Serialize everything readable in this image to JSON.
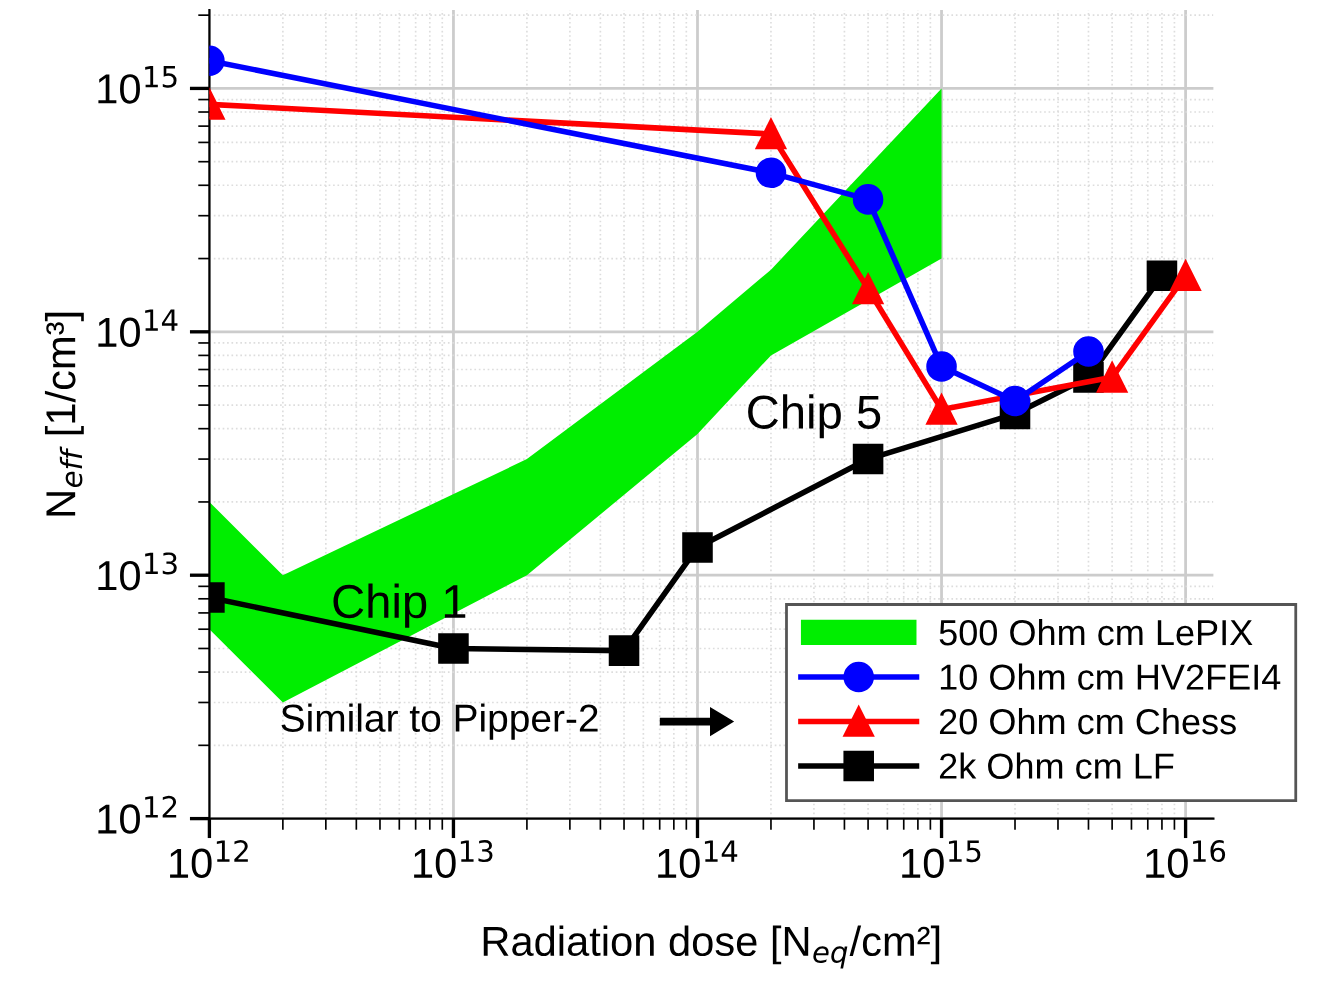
{
  "chart_data": {
    "type": "line",
    "xlabel": "Radiation dose [N$_{eq}$/cm²]",
    "ylabel": "N$_{eff}$ [1/cm³]",
    "log": "xy",
    "xlim": [
      1000000000000.0,
      1.3e+16
    ],
    "ylim": [
      1000000000000.0,
      2100000000000000.0
    ],
    "xticks": [
      {
        "value": 1000000000000.0,
        "label": "10$^{12}$"
      },
      {
        "value": 10000000000000.0,
        "label": "10$^{13}$"
      },
      {
        "value": 100000000000000.0,
        "label": "10$^{14}$"
      },
      {
        "value": 1000000000000000.0,
        "label": "10$^{15}$"
      },
      {
        "value": 1e+16,
        "label": "10$^{16}$"
      }
    ],
    "yticks": [
      {
        "value": 1000000000000.0,
        "label": "10$^{12}$"
      },
      {
        "value": 10000000000000.0,
        "label": "10$^{13}$"
      },
      {
        "value": 100000000000000.0,
        "label": "10$^{14}$"
      },
      {
        "value": 1000000000000000.0,
        "label": "10$^{15}$"
      }
    ],
    "grid": true,
    "legend": "bottom right",
    "series": [
      {
        "name": "500 Ohm cm LePIX",
        "color": "#00ee00",
        "marker": "none",
        "x": [
          1000000000000.0,
          2000000000000.0,
          20000000000000.0,
          100000000000000.0,
          200000000000000.0,
          1000000000000000.0
        ],
        "values": [
          null,
          null,
          null,
          null,
          null,
          null
        ],
        "lower": [
          6000000000000.0,
          3000000000000.0,
          10000000000000.0,
          38000000000000.0,
          80000000000000.0,
          200000000000000.0
        ],
        "upper": [
          20000000000000.0,
          10000000000000.0,
          30000000000000.0,
          100000000000000.0,
          180000000000000.0,
          1000000000000000.0
        ]
      },
      {
        "name": "10 Ohm cm HV2FEI4",
        "color": "#0000ff",
        "marker": "circle",
        "x": [
          1000000000000.0,
          200000000000000.0,
          500000000000000.0,
          1000000000000000.0,
          2000000000000000.0,
          4000000000000000.0
        ],
        "values": [
          1300000000000000.0,
          450000000000000.0,
          350000000000000.0,
          72000000000000.0,
          52000000000000.0,
          83000000000000.0
        ]
      },
      {
        "name": "20 Ohm cm Chess",
        "color": "#ff0000",
        "marker": "triangle",
        "x": [
          1000000000000.0,
          200000000000000.0,
          500000000000000.0,
          1000000000000000.0,
          5000000000000000.0,
          1e+16
        ],
        "values": [
          860000000000000.0,
          650000000000000.0,
          150000000000000.0,
          48000000000000.0,
          65000000000000.0,
          170000000000000.0
        ]
      },
      {
        "name": "2k Ohm cm LF",
        "color": "#000000",
        "marker": "square",
        "x": [
          1000000000000.0,
          10000000000000.0,
          50000000000000.0,
          100000000000000.0,
          500000000000000.0,
          2000000000000000.0,
          4000000000000000.0,
          8000000000000000.0
        ],
        "values": [
          8100000000000.0,
          5000000000000.0,
          4900000000000.0,
          13000000000000.0,
          30000000000000.0,
          46000000000000.0,
          65000000000000.0,
          170000000000000.0
        ]
      }
    ],
    "annotations": [
      {
        "text": "Chip 1",
        "x": 10000000000000.0,
        "y": 5000000000000.0
      },
      {
        "text": "Chip 5",
        "x": 500000000000000.0,
        "y": 30000000000000.0
      },
      "Similar to Pipper-2"
    ]
  }
}
